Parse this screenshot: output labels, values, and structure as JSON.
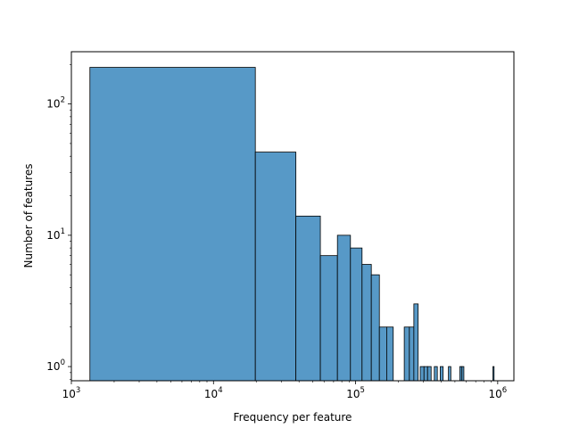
{
  "chart_data": {
    "type": "bar",
    "xlabel": "Frequency per feature",
    "ylabel": "Number of features",
    "xscale": "log",
    "yscale": "log",
    "xlim": [
      1000,
      1300000
    ],
    "ylim": [
      0.78,
      250
    ],
    "grid": false,
    "bar_color": "#5799c7",
    "edge_color": "#000000",
    "x_ticks": [
      {
        "value": 1000,
        "base": "10",
        "exp": "3"
      },
      {
        "value": 10000,
        "base": "10",
        "exp": "4"
      },
      {
        "value": 100000,
        "base": "10",
        "exp": "5"
      },
      {
        "value": 1000000,
        "base": "10",
        "exp": "6"
      }
    ],
    "y_ticks": [
      {
        "value": 1,
        "base": "10",
        "exp": "0"
      },
      {
        "value": 10,
        "base": "10",
        "exp": "1"
      },
      {
        "value": 100,
        "base": "10",
        "exp": "2"
      }
    ],
    "bins": [
      {
        "x0": 1350,
        "x1": 19700,
        "count": 190
      },
      {
        "x0": 19700,
        "x1": 38000,
        "count": 43
      },
      {
        "x0": 38000,
        "x1": 56500,
        "count": 14
      },
      {
        "x0": 56500,
        "x1": 74500,
        "count": 7
      },
      {
        "x0": 74500,
        "x1": 92000,
        "count": 10
      },
      {
        "x0": 92000,
        "x1": 111000,
        "count": 8
      },
      {
        "x0": 111000,
        "x1": 129000,
        "count": 6
      },
      {
        "x0": 129000,
        "x1": 147000,
        "count": 5
      },
      {
        "x0": 147000,
        "x1": 165500,
        "count": 2
      },
      {
        "x0": 165500,
        "x1": 184000,
        "count": 2
      },
      {
        "x0": 220000,
        "x1": 239000,
        "count": 2
      },
      {
        "x0": 239000,
        "x1": 257000,
        "count": 2
      },
      {
        "x0": 257000,
        "x1": 275500,
        "count": 3
      },
      {
        "x0": 285000,
        "x1": 303000,
        "count": 1
      },
      {
        "x0": 303000,
        "x1": 321000,
        "count": 1
      },
      {
        "x0": 321000,
        "x1": 340000,
        "count": 1
      },
      {
        "x0": 358000,
        "x1": 376000,
        "count": 1
      },
      {
        "x0": 394000,
        "x1": 413000,
        "count": 1
      },
      {
        "x0": 450000,
        "x1": 468000,
        "count": 1
      },
      {
        "x0": 541000,
        "x1": 560000,
        "count": 1
      },
      {
        "x0": 560000,
        "x1": 578000,
        "count": 1
      },
      {
        "x0": 925000,
        "x1": 943000,
        "count": 1
      }
    ]
  }
}
